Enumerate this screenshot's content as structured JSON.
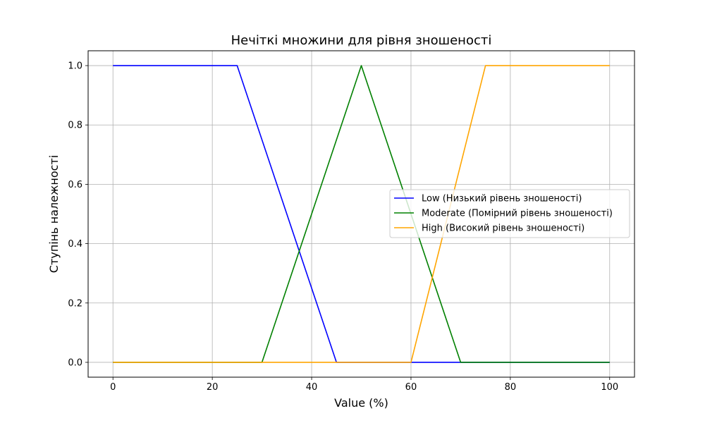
{
  "chart_data": {
    "type": "line",
    "title": "Нечіткі множини для рівня зношеності",
    "xlabel": "Value (%)",
    "ylabel": "Ступінь належності",
    "xlim": [
      -5,
      105
    ],
    "ylim": [
      -0.05,
      1.05
    ],
    "xticks": [
      0,
      20,
      40,
      60,
      80,
      100
    ],
    "yticks": [
      0.0,
      0.2,
      0.4,
      0.6,
      0.8,
      1.0
    ],
    "xtick_labels": [
      "0",
      "20",
      "40",
      "60",
      "80",
      "100"
    ],
    "ytick_labels": [
      "0.0",
      "0.2",
      "0.4",
      "0.6",
      "0.8",
      "1.0"
    ],
    "grid": true,
    "legend_position": "center-right",
    "series": [
      {
        "name": "Low (Низький рівень зношеності)",
        "color": "#0000ff",
        "x": [
          0,
          25,
          45,
          60,
          70,
          100
        ],
        "y": [
          1,
          1,
          0,
          0,
          0,
          0
        ]
      },
      {
        "name": "Moderate (Помірний рівень зношеності)",
        "color": "#008000",
        "x": [
          0,
          30,
          50,
          70,
          100
        ],
        "y": [
          0,
          0,
          1,
          0,
          0
        ]
      },
      {
        "name": "High (Високий рівень зношеності)",
        "color": "#ffa500",
        "x": [
          0,
          60,
          75,
          100
        ],
        "y": [
          0,
          0,
          1,
          1
        ]
      }
    ]
  }
}
